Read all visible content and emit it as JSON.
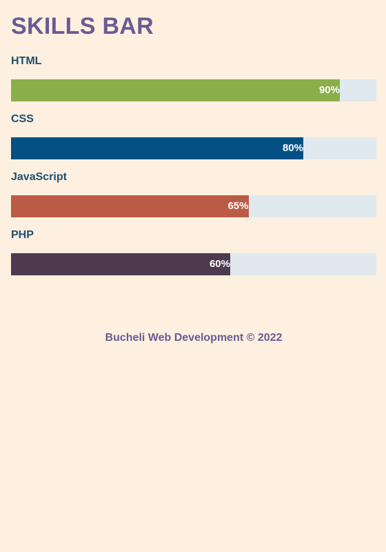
{
  "page": {
    "title": "SKILLS BAR",
    "background": "#fdf0e0",
    "track_color": "#dfe9ee"
  },
  "skills": [
    {
      "label": "HTML",
      "percent": 90,
      "value_text": "90%",
      "color": "#8aae4a"
    },
    {
      "label": "CSS",
      "percent": 80,
      "value_text": "80%",
      "color": "#045084"
    },
    {
      "label": "JavaScript",
      "percent": 65,
      "value_text": "65%",
      "color": "#bb5a47"
    },
    {
      "label": "PHP",
      "percent": 60,
      "value_text": "60%",
      "color": "#4e3a4e"
    }
  ],
  "footer": {
    "text": "Bucheli Web Development © 2022"
  }
}
